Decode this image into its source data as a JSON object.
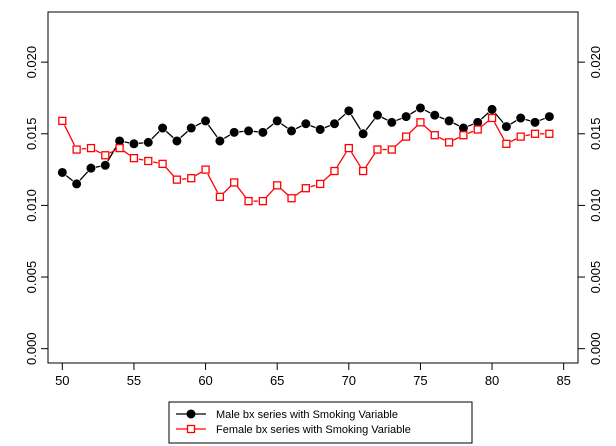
{
  "chart_data": {
    "type": "line",
    "x": [
      50,
      51,
      52,
      53,
      54,
      55,
      56,
      57,
      58,
      59,
      60,
      61,
      62,
      63,
      64,
      65,
      66,
      67,
      68,
      69,
      70,
      71,
      72,
      73,
      74,
      75,
      76,
      77,
      78,
      79,
      80,
      81,
      82,
      83,
      84
    ],
    "series": [
      {
        "name": "Male bx series with Smoking Variable",
        "color": "#000000",
        "marker": "filled-circle",
        "values": [
          0.0123,
          0.0115,
          0.0126,
          0.0128,
          0.0145,
          0.0143,
          0.0144,
          0.0154,
          0.0145,
          0.0154,
          0.0159,
          0.0145,
          0.0151,
          0.0152,
          0.0151,
          0.0159,
          0.0152,
          0.0157,
          0.0153,
          0.0157,
          0.0166,
          0.015,
          0.0163,
          0.0158,
          0.0162,
          0.0168,
          0.0163,
          0.0159,
          0.0154,
          0.0158,
          0.0167,
          0.0155,
          0.0161,
          0.0158,
          0.0162
        ]
      },
      {
        "name": "Female bx series with Smoking Variable",
        "color": "#ff0000",
        "marker": "open-square",
        "values": [
          0.0159,
          0.0139,
          0.014,
          0.0135,
          0.014,
          0.0133,
          0.0131,
          0.0129,
          0.0118,
          0.0119,
          0.0125,
          0.0106,
          0.0116,
          0.0103,
          0.0103,
          0.0114,
          0.0105,
          0.0112,
          0.0115,
          0.0124,
          0.014,
          0.0124,
          0.0139,
          0.0139,
          0.0148,
          0.0158,
          0.0149,
          0.0144,
          0.0149,
          0.0153,
          0.0161,
          0.0143,
          0.0148,
          0.015,
          0.015
        ]
      }
    ],
    "xlim": [
      49,
      86
    ],
    "ylim": [
      -0.001,
      0.0235
    ],
    "xticks": [
      50,
      55,
      60,
      65,
      70,
      75,
      80,
      85
    ],
    "xtick_labels": [
      "50",
      "55",
      "60",
      "65",
      "70",
      "75",
      "80",
      "85"
    ],
    "yticks": [
      0,
      0.005,
      0.01,
      0.015,
      0.02
    ],
    "ytick_labels": [
      "0.000",
      "0.005",
      "0.010",
      "0.015",
      "0.020"
    ],
    "secondary_y_axis": true,
    "title": "",
    "xlabel": "",
    "ylabel": "",
    "grid": false,
    "legend_position": "bottom"
  }
}
